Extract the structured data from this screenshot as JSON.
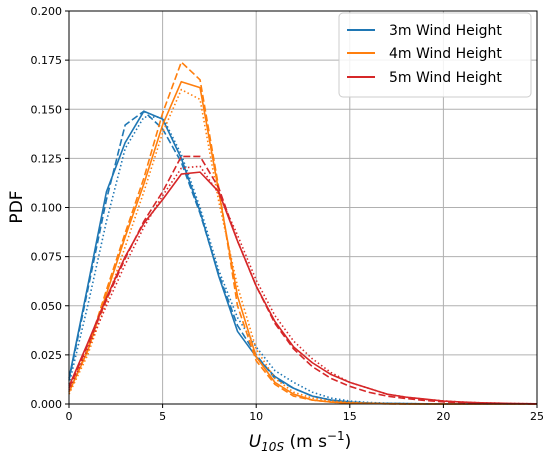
{
  "chart_data": {
    "type": "line",
    "title": "",
    "xlabel": {
      "main": "U",
      "sub": "10S",
      "unit": " (m s",
      "exp": "−1",
      "close": ")"
    },
    "ylabel": "PDF",
    "xlim": [
      0,
      25
    ],
    "ylim": [
      0,
      0.2
    ],
    "x_ticks": [
      0,
      5,
      10,
      15,
      20,
      25
    ],
    "x_tick_labels": [
      "0",
      "5",
      "10",
      "15",
      "20",
      "25"
    ],
    "y_ticks": [
      0,
      0.025,
      0.05,
      0.075,
      0.1,
      0.125,
      0.15,
      0.175,
      0.2
    ],
    "y_tick_labels": [
      "0.000",
      "0.025",
      "0.050",
      "0.075",
      "0.100",
      "0.125",
      "0.150",
      "0.175",
      "0.200"
    ],
    "grid": true,
    "legend_position": "top-right",
    "x": [
      0,
      1,
      2,
      3,
      4,
      5,
      6,
      7,
      8,
      9,
      10,
      11,
      12,
      13,
      14,
      15,
      16,
      17,
      18,
      19,
      20,
      21,
      22,
      23,
      24,
      25
    ],
    "series": [
      {
        "name": "3m Wind Height",
        "color": "#1f77b4",
        "style": "solid",
        "values": [
          0.013,
          0.06,
          0.108,
          0.133,
          0.149,
          0.145,
          0.125,
          0.098,
          0.065,
          0.037,
          0.024,
          0.014,
          0.008,
          0.004,
          0.002,
          0.001,
          0.0005,
          0.0003,
          0.0002,
          0.0001,
          0,
          0,
          0,
          0,
          0,
          0
        ]
      },
      {
        "name": "",
        "color": "#1f77b4",
        "style": "dashed",
        "values": [
          0.012,
          0.058,
          0.104,
          0.142,
          0.149,
          0.14,
          0.123,
          0.097,
          0.066,
          0.04,
          0.025,
          0.013,
          0.008,
          0.004,
          0.002,
          0.001,
          0.0005,
          0.0003,
          0.0001,
          0,
          0,
          0,
          0,
          0,
          0,
          0
        ]
      },
      {
        "name": "",
        "color": "#1f77b4",
        "style": "dotted",
        "values": [
          0.01,
          0.05,
          0.093,
          0.13,
          0.146,
          0.146,
          0.127,
          0.1,
          0.068,
          0.044,
          0.029,
          0.017,
          0.011,
          0.006,
          0.003,
          0.0015,
          0.0008,
          0.0004,
          0.0002,
          0.0001,
          0,
          0,
          0,
          0,
          0,
          0
        ]
      },
      {
        "name": "4m Wind Height",
        "color": "#ff7f0e",
        "style": "solid",
        "values": [
          0.006,
          0.027,
          0.056,
          0.085,
          0.112,
          0.142,
          0.164,
          0.161,
          0.108,
          0.055,
          0.024,
          0.011,
          0.005,
          0.002,
          0.001,
          0.0005,
          0.0003,
          0.0001,
          0,
          0,
          0,
          0,
          0,
          0,
          0,
          0
        ]
      },
      {
        "name": "",
        "color": "#ff7f0e",
        "style": "dashed",
        "values": [
          0.006,
          0.028,
          0.058,
          0.087,
          0.115,
          0.148,
          0.174,
          0.165,
          0.11,
          0.05,
          0.022,
          0.01,
          0.004,
          0.002,
          0.001,
          0.0005,
          0.0002,
          0.0001,
          0,
          0,
          0,
          0,
          0,
          0,
          0,
          0
        ]
      },
      {
        "name": "",
        "color": "#ff7f0e",
        "style": "dotted",
        "values": [
          0.005,
          0.025,
          0.052,
          0.08,
          0.108,
          0.138,
          0.16,
          0.155,
          0.103,
          0.06,
          0.028,
          0.013,
          0.006,
          0.003,
          0.0015,
          0.0008,
          0.0004,
          0.0002,
          0.0001,
          0,
          0,
          0,
          0,
          0,
          0,
          0
        ]
      },
      {
        "name": "5m Wind Height",
        "color": "#d62728",
        "style": "solid",
        "values": [
          0.009,
          0.031,
          0.054,
          0.075,
          0.092,
          0.104,
          0.117,
          0.118,
          0.108,
          0.083,
          0.06,
          0.042,
          0.029,
          0.021,
          0.015,
          0.011,
          0.008,
          0.005,
          0.0035,
          0.0025,
          0.0015,
          0.001,
          0.0006,
          0.0004,
          0.0002,
          0.0001
        ]
      },
      {
        "name": "",
        "color": "#d62728",
        "style": "dashed",
        "values": [
          0.008,
          0.03,
          0.053,
          0.074,
          0.093,
          0.108,
          0.126,
          0.126,
          0.11,
          0.083,
          0.06,
          0.041,
          0.028,
          0.019,
          0.013,
          0.009,
          0.006,
          0.004,
          0.0028,
          0.0018,
          0.0011,
          0.0007,
          0.0004,
          0.0002,
          0.0001,
          0
        ]
      },
      {
        "name": "",
        "color": "#d62728",
        "style": "dotted",
        "values": [
          0.007,
          0.028,
          0.05,
          0.071,
          0.09,
          0.106,
          0.12,
          0.121,
          0.107,
          0.086,
          0.063,
          0.045,
          0.032,
          0.023,
          0.016,
          0.011,
          0.008,
          0.005,
          0.0035,
          0.0024,
          0.0016,
          0.001,
          0.0006,
          0.0004,
          0.0002,
          0.0001
        ]
      }
    ]
  }
}
